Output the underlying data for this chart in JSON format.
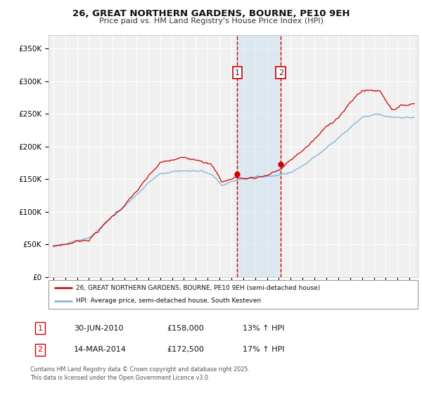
{
  "title_line1": "26, GREAT NORTHERN GARDENS, BOURNE, PE10 9EH",
  "title_line2": "Price paid vs. HM Land Registry's House Price Index (HPI)",
  "ylim": [
    0,
    370000
  ],
  "yticks": [
    0,
    50000,
    100000,
    150000,
    200000,
    250000,
    300000,
    350000
  ],
  "ytick_labels": [
    "£0",
    "£50K",
    "£100K",
    "£150K",
    "£200K",
    "£250K",
    "£300K",
    "£350K"
  ],
  "xlim_start": 1994.6,
  "xlim_end": 2025.7,
  "background_color": "#ffffff",
  "plot_bg_color": "#f0f0f0",
  "grid_color": "#ffffff",
  "sale1_date": 2010.5,
  "sale1_label": "1",
  "sale1_price": 158000,
  "sale2_date": 2014.17,
  "sale2_label": "2",
  "sale2_price": 172500,
  "shade_color": "#cce0f0",
  "dashed_color": "#cc0000",
  "legend_entry1": "26, GREAT NORTHERN GARDENS, BOURNE, PE10 9EH (semi-detached house)",
  "legend_entry2": "HPI: Average price, semi-detached house, South Kesteven",
  "footnote_line1": "Contains HM Land Registry data © Crown copyright and database right 2025.",
  "footnote_line2": "This data is licensed under the Open Government Licence v3.0.",
  "table_row1_num": "1",
  "table_row1_date": "30-JUN-2010",
  "table_row1_price": "£158,000",
  "table_row1_hpi": "13% ↑ HPI",
  "table_row2_num": "2",
  "table_row2_date": "14-MAR-2014",
  "table_row2_price": "£172,500",
  "table_row2_hpi": "17% ↑ HPI",
  "line_color_red": "#cc0000",
  "line_color_blue": "#7ab0d4"
}
